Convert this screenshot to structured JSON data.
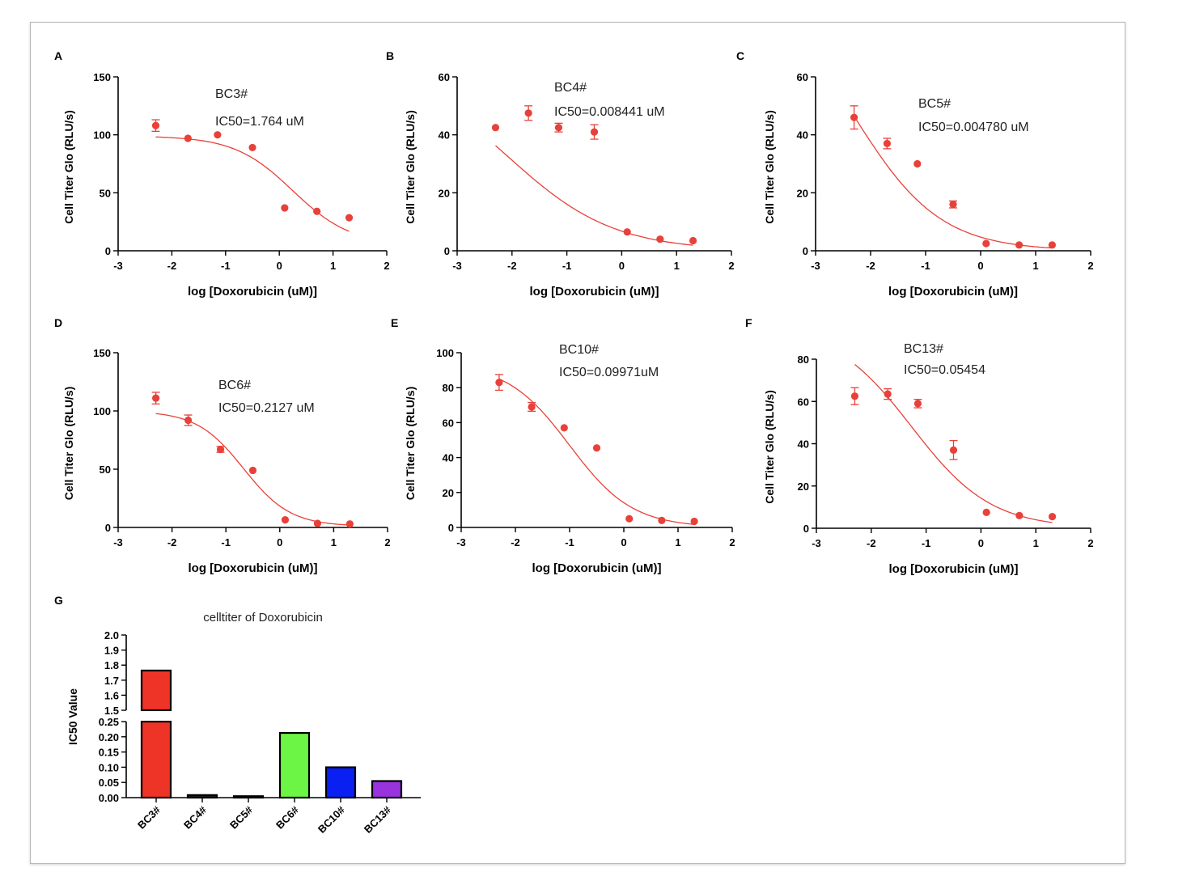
{
  "colors": {
    "curve": "#e8413a",
    "axis": "#000000"
  },
  "chart_data": [
    {
      "panel_label": "A",
      "type": "scatter",
      "title": "BC3#",
      "annotation": "IC50=1.764 uM",
      "xlabel": "log [Doxorubicin (uM)]",
      "ylabel": "Cell Titer Glo (RLU/s)",
      "xlim": [
        -3,
        2
      ],
      "ylim": [
        0,
        150
      ],
      "xticks": [
        -3,
        -2,
        -1,
        0,
        1,
        2
      ],
      "yticks": [
        0,
        50,
        100,
        150
      ],
      "points": [
        {
          "x": -2.3,
          "y": 108,
          "err": 5
        },
        {
          "x": -1.7,
          "y": 97,
          "err": 0
        },
        {
          "x": -1.15,
          "y": 100,
          "err": 0
        },
        {
          "x": -0.5,
          "y": 89,
          "err": 0
        },
        {
          "x": 0.1,
          "y": 37,
          "err": 0
        },
        {
          "x": 0.7,
          "y": 34,
          "err": 0
        },
        {
          "x": 1.3,
          "y": 28.5,
          "err": 0
        }
      ],
      "fit": {
        "top": 99,
        "bottom": 5,
        "logic50": 0.2465,
        "hill": -0.8,
        "xmin": -2.3,
        "xmax": 1.3
      }
    },
    {
      "panel_label": "B",
      "type": "scatter",
      "title": "BC4#",
      "annotation": "IC50=0.008441 uM",
      "xlabel": "log [Doxorubicin (uM)]",
      "ylabel": "Cell Titer Glo (RLU/s)",
      "xlim": [
        -3,
        2
      ],
      "ylim": [
        0,
        60
      ],
      "xticks": [
        -3,
        -2,
        -1,
        0,
        1,
        2
      ],
      "yticks": [
        0,
        20,
        40,
        60
      ],
      "points": [
        {
          "x": -2.3,
          "y": 42.5,
          "err": 0
        },
        {
          "x": -1.7,
          "y": 47.5,
          "err": 2.5
        },
        {
          "x": -1.15,
          "y": 42.5,
          "err": 1.5
        },
        {
          "x": -0.5,
          "y": 41,
          "err": 2.5
        },
        {
          "x": 0.1,
          "y": 6.5,
          "err": 0
        },
        {
          "x": 0.7,
          "y": 4,
          "err": 0
        },
        {
          "x": 1.3,
          "y": 3.5,
          "err": 0
        }
      ],
      "fit": {
        "top": 65,
        "bottom": 0,
        "logic50": -2.074,
        "hill": -0.45,
        "xmin": -2.3,
        "xmax": 1.3
      }
    },
    {
      "panel_label": "C",
      "type": "scatter",
      "title": "BC5#",
      "annotation": "IC50=0.004780 uM",
      "xlabel": "log [Doxorubicin (uM)]",
      "ylabel": "Cell Titer Glo (RLU/s)",
      "xlim": [
        -3,
        2
      ],
      "ylim": [
        0,
        60
      ],
      "xticks": [
        -3,
        -2,
        -1,
        0,
        1,
        2
      ],
      "yticks": [
        0,
        20,
        40,
        60
      ],
      "points": [
        {
          "x": -2.3,
          "y": 46,
          "err": 4
        },
        {
          "x": -1.7,
          "y": 37,
          "err": 1.8
        },
        {
          "x": -1.15,
          "y": 30,
          "err": 0
        },
        {
          "x": -0.5,
          "y": 16,
          "err": 1.2
        },
        {
          "x": 0.1,
          "y": 2.5,
          "err": 0
        },
        {
          "x": 0.7,
          "y": 2,
          "err": 0
        },
        {
          "x": 1.3,
          "y": 2,
          "err": 0
        }
      ],
      "fit": {
        "top": 94,
        "bottom": 0,
        "logic50": -2.32,
        "hill": -0.55,
        "xmin": -2.3,
        "xmax": 1.3
      }
    },
    {
      "panel_label": "D",
      "type": "scatter",
      "title": "BC6#",
      "annotation": "IC50=0.2127 uM",
      "xlabel": "log [Doxorubicin (uM)]",
      "ylabel": "Cell Titer Glo (RLU/s)",
      "xlim": [
        -3,
        2
      ],
      "ylim": [
        0,
        150
      ],
      "xticks": [
        -3,
        -2,
        -1,
        0,
        1,
        2
      ],
      "yticks": [
        0,
        50,
        100,
        150
      ],
      "points": [
        {
          "x": -2.3,
          "y": 111,
          "err": 5
        },
        {
          "x": -1.7,
          "y": 92,
          "err": 4.5
        },
        {
          "x": -1.1,
          "y": 67,
          "err": 2.5
        },
        {
          "x": -0.5,
          "y": 49,
          "err": 0
        },
        {
          "x": 0.1,
          "y": 6.5,
          "err": 0
        },
        {
          "x": 0.7,
          "y": 3.5,
          "err": 0
        },
        {
          "x": 1.3,
          "y": 3,
          "err": 0
        }
      ],
      "fit": {
        "top": 100,
        "bottom": 1,
        "logic50": -0.672,
        "hill": -1.0,
        "xmin": -2.3,
        "xmax": 1.3
      }
    },
    {
      "panel_label": "E",
      "type": "scatter",
      "title": "BC10#",
      "annotation": "IC50=0.09971uM",
      "xlabel": "log [Doxorubicin (uM)]",
      "ylabel": "Cell Titer Glo (RLU/s)",
      "xlim": [
        -3,
        2
      ],
      "ylim": [
        0,
        100
      ],
      "xticks": [
        -3,
        -2,
        -1,
        0,
        1,
        2
      ],
      "yticks": [
        0,
        20,
        40,
        60,
        80,
        100
      ],
      "points": [
        {
          "x": -2.3,
          "y": 83,
          "err": 4.5
        },
        {
          "x": -1.7,
          "y": 69,
          "err": 2.5
        },
        {
          "x": -1.1,
          "y": 57,
          "err": 0
        },
        {
          "x": -0.5,
          "y": 45.5,
          "err": 0
        },
        {
          "x": 0.1,
          "y": 5,
          "err": 0
        },
        {
          "x": 0.7,
          "y": 4,
          "err": 0
        },
        {
          "x": 1.3,
          "y": 3.5,
          "err": 0
        }
      ],
      "fit": {
        "top": 94,
        "bottom": 0,
        "logic50": -1.001,
        "hill": -0.75,
        "xmin": -2.3,
        "xmax": 1.3
      }
    },
    {
      "panel_label": "F",
      "type": "scatter",
      "title": "BC13#",
      "annotation": "IC50=0.05454",
      "xlabel": "log [Doxorubicin (uM)]",
      "ylabel": "Cell Titer Glo (RLU/s)",
      "xlim": [
        -3,
        2
      ],
      "ylim": [
        0,
        80
      ],
      "xticks": [
        -3,
        -2,
        -1,
        0,
        1,
        2
      ],
      "yticks": [
        0,
        20,
        40,
        60,
        80
      ],
      "points": [
        {
          "x": -2.3,
          "y": 62.5,
          "err": 4
        },
        {
          "x": -1.7,
          "y": 63.5,
          "err": 2.5
        },
        {
          "x": -1.15,
          "y": 59,
          "err": 2
        },
        {
          "x": -0.5,
          "y": 37,
          "err": 4.5
        },
        {
          "x": 0.1,
          "y": 7.5,
          "err": 0
        },
        {
          "x": 0.7,
          "y": 6,
          "err": 0
        },
        {
          "x": 1.3,
          "y": 5.5,
          "err": 0
        }
      ],
      "fit": {
        "top": 96,
        "bottom": 0,
        "logic50": -1.263,
        "hill": -0.6,
        "xmin": -2.3,
        "xmax": 1.3
      }
    },
    {
      "panel_label": "G",
      "type": "bar",
      "title": "celltiter of Doxorubicin",
      "xlabel": "",
      "ylabel": "IC50 Value",
      "categories": [
        "BC3#",
        "BC4#",
        "BC5#",
        "BC6#",
        "BC10#",
        "BC13#"
      ],
      "values": [
        1.764,
        0.008441,
        0.00478,
        0.2127,
        0.09971,
        0.05454
      ],
      "bar_colors": [
        "#ee3426",
        "#1a1a1a",
        "#1a1a1a",
        "#6df545",
        "#0a1ff2",
        "#9933dd"
      ],
      "broken_axis": {
        "lower": {
          "ylim": [
            0,
            0.25
          ],
          "ticks": [
            "0.00",
            "0.05",
            "0.10",
            "0.15",
            "0.20",
            "0.25"
          ]
        },
        "upper": {
          "ylim": [
            1.5,
            2.0
          ],
          "ticks": [
            "1.5",
            "1.6",
            "1.7",
            "1.8",
            "1.9",
            "2.0"
          ]
        }
      }
    }
  ]
}
